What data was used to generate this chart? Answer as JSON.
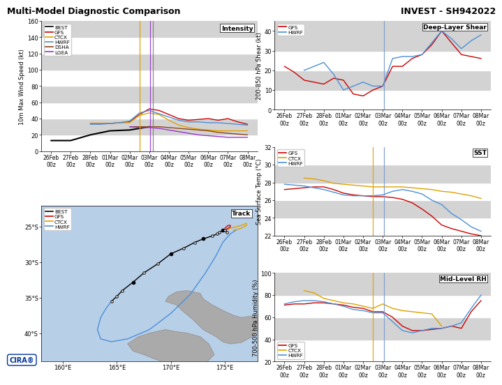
{
  "title_left": "Multi-Model Diagnostic Comparison",
  "title_right": "INVEST - SH942022",
  "x_labels": [
    "26Feb\n00z",
    "27Feb\n00z",
    "28Feb\n00z",
    "01Mar\n00z",
    "02Mar\n00z",
    "03Mar\n00z",
    "04Mar\n00z",
    "05Mar\n00z",
    "06Mar\n00z",
    "07Mar\n00z",
    "08Mar\n00z"
  ],
  "x_ticks": [
    0,
    1,
    2,
    3,
    4,
    5,
    6,
    7,
    8,
    9,
    10
  ],
  "vline_yellow_int": 4.5,
  "vline_purple_int": 5.05,
  "vline_gray_int": 5.2,
  "vline_blue_shear": 5.05,
  "vline_yellow_sst": 4.5,
  "vline_blue_sst": 5.05,
  "vline_yellow_rh": 4.5,
  "vline_blue_rh": 5.05,
  "intensity": {
    "ylabel": "10m Max Wind Speed (kt)",
    "ylim": [
      0,
      160
    ],
    "yticks": [
      0,
      20,
      40,
      60,
      80,
      100,
      120,
      140,
      160
    ],
    "label": "Intensity",
    "BEST": {
      "x": [
        0,
        1,
        2,
        3,
        4,
        4.5,
        5
      ],
      "y": [
        13,
        13,
        20,
        25,
        26,
        28,
        30
      ],
      "color": "#000000",
      "lw": 1.5
    },
    "GFS": {
      "x": [
        2,
        2.5,
        3,
        3.5,
        4,
        4.5,
        5,
        5.5,
        6,
        6.5,
        7,
        7.5,
        8,
        8.5,
        9,
        9.5,
        10
      ],
      "y": [
        34,
        34,
        34,
        35,
        36,
        45,
        52,
        50,
        45,
        40,
        38,
        39,
        40,
        38,
        40,
        36,
        33
      ],
      "color": "#cc0000",
      "lw": 1.0
    },
    "CTCX": {
      "x": [
        2,
        2.5,
        3,
        3.5,
        4,
        4.5,
        5,
        5.5,
        6,
        6.5,
        7,
        7.5,
        8,
        8.5,
        9,
        9.5,
        10
      ],
      "y": [
        34,
        34,
        34,
        35,
        35,
        44,
        47,
        45,
        38,
        32,
        29,
        27,
        26,
        25,
        25,
        25,
        25
      ],
      "color": "#e0a000",
      "lw": 1.0
    },
    "HWRF": {
      "x": [
        2,
        2.5,
        3,
        3.5,
        4,
        4.5,
        5,
        5.5,
        6,
        6.5,
        7,
        7.5,
        8,
        8.5,
        9,
        9.5,
        10
      ],
      "y": [
        33,
        33,
        34,
        35,
        37,
        47,
        50,
        46,
        42,
        38,
        36,
        36,
        35,
        35,
        34,
        33,
        32
      ],
      "color": "#4a90d9",
      "lw": 1.0
    },
    "DSHA": {
      "x": [
        4,
        4.5,
        5,
        5.5,
        6,
        6.5,
        7,
        7.5,
        8,
        8.5,
        9,
        9.5,
        10
      ],
      "y": [
        30,
        30,
        30,
        30,
        29,
        28,
        27,
        26,
        25,
        23,
        22,
        21,
        20
      ],
      "color": "#8B4513",
      "lw": 1.0
    },
    "LGEA": {
      "x": [
        4,
        4.5,
        5,
        5.5,
        6,
        6.5,
        7,
        7.5,
        8,
        8.5,
        9,
        9.5,
        10
      ],
      "y": [
        30,
        29,
        29,
        28,
        26,
        24,
        22,
        20,
        19,
        18,
        17,
        17,
        17
      ],
      "color": "#9932CC",
      "lw": 1.0
    }
  },
  "shear": {
    "ylabel": "200-850 hPa Shear (kt)",
    "ylim": [
      0,
      45
    ],
    "yticks": [
      0,
      10,
      20,
      30,
      40
    ],
    "label": "Deep-Layer Shear",
    "GFS": {
      "x": [
        0,
        0.5,
        1,
        1.5,
        2,
        2.5,
        3,
        3.5,
        4,
        4.5,
        5,
        5.5,
        6,
        6.5,
        7,
        7.5,
        8,
        8.5,
        9,
        9.5,
        10
      ],
      "y": [
        22,
        19,
        15,
        14,
        13,
        16,
        15,
        8,
        7,
        10,
        12,
        22,
        22,
        26,
        28,
        33,
        40,
        34,
        28,
        27,
        26
      ],
      "color": "#cc0000",
      "lw": 1.0
    },
    "HWRF": {
      "x": [
        1,
        1.5,
        2,
        2.5,
        3,
        3.5,
        4,
        4.5,
        5,
        5.5,
        6,
        6.5,
        7,
        7.5,
        8,
        8.5,
        9,
        9.5,
        10
      ],
      "y": [
        20,
        22,
        24,
        18,
        10,
        12,
        14,
        12,
        12,
        26,
        27,
        27,
        28,
        34,
        40,
        36,
        31,
        35,
        38
      ],
      "color": "#4a90d9",
      "lw": 1.0
    }
  },
  "sst": {
    "ylabel": "Sea Surface Temp (°C)",
    "ylim": [
      22,
      32
    ],
    "yticks": [
      22,
      24,
      26,
      28,
      30,
      32
    ],
    "label": "SST",
    "GFS": {
      "x": [
        0,
        0.5,
        1,
        1.5,
        2,
        2.5,
        3,
        3.5,
        4,
        4.5,
        5,
        5.5,
        6,
        6.5,
        7,
        7.5,
        8,
        8.5,
        9,
        9.5,
        10
      ],
      "y": [
        27.2,
        27.3,
        27.4,
        27.5,
        27.5,
        27.2,
        26.8,
        26.6,
        26.5,
        26.4,
        26.4,
        26.3,
        26.1,
        25.7,
        25.0,
        24.2,
        23.2,
        22.8,
        22.5,
        22.2,
        22.0
      ],
      "color": "#cc0000",
      "lw": 1.0
    },
    "CTCX": {
      "x": [
        1,
        1.5,
        2,
        2.5,
        3,
        3.5,
        4,
        4.5,
        5,
        5.5,
        6,
        6.5,
        7,
        7.5,
        8,
        8.5,
        9,
        9.5,
        10
      ],
      "y": [
        28.5,
        28.4,
        28.2,
        27.9,
        27.8,
        27.7,
        27.6,
        27.5,
        27.5,
        27.5,
        27.5,
        27.4,
        27.3,
        27.2,
        27.0,
        26.9,
        26.7,
        26.5,
        26.2
      ],
      "color": "#e0a000",
      "lw": 1.0
    },
    "HWRF": {
      "x": [
        0,
        0.5,
        1,
        1.5,
        2,
        2.5,
        3,
        3.5,
        4,
        4.5,
        5,
        5.5,
        6,
        6.5,
        7,
        7.5,
        8,
        8.5,
        9,
        9.5,
        10
      ],
      "y": [
        27.8,
        27.7,
        27.6,
        27.4,
        27.2,
        26.9,
        26.6,
        26.5,
        26.5,
        26.5,
        26.6,
        27.0,
        27.2,
        27.0,
        26.7,
        26.0,
        25.5,
        24.5,
        23.8,
        23.0,
        22.5
      ],
      "color": "#4a90d9",
      "lw": 1.0
    }
  },
  "rh": {
    "ylabel": "700-500 hPa Humidity (%)",
    "ylim": [
      20,
      100
    ],
    "yticks": [
      20,
      40,
      60,
      80,
      100
    ],
    "label": "Mid-Level RH",
    "GFS": {
      "x": [
        0,
        0.5,
        1,
        1.5,
        2,
        2.5,
        3,
        3.5,
        4,
        4.5,
        5,
        5.5,
        6,
        6.5,
        7,
        7.5,
        8,
        8.5,
        9,
        9.5,
        10
      ],
      "y": [
        71,
        72,
        72,
        73,
        73,
        72,
        71,
        69,
        68,
        65,
        65,
        60,
        52,
        48,
        48,
        49,
        50,
        52,
        50,
        65,
        75
      ],
      "color": "#cc0000",
      "lw": 1.0
    },
    "CTCX": {
      "x": [
        1,
        1.5,
        2,
        2.5,
        3,
        3.5,
        4,
        4.5,
        5,
        5.5,
        6,
        6.5,
        7,
        7.5,
        8
      ],
      "y": [
        84,
        82,
        77,
        75,
        73,
        72,
        70,
        68,
        72,
        68,
        66,
        65,
        64,
        63,
        52
      ],
      "color": "#e0a000",
      "lw": 1.0
    },
    "HWRF": {
      "x": [
        0,
        0.5,
        1,
        1.5,
        2,
        2.5,
        3,
        3.5,
        4,
        4.5,
        5,
        5.5,
        6,
        6.5,
        7,
        7.5,
        8,
        8.5,
        9,
        9.5,
        10
      ],
      "y": [
        72,
        74,
        75,
        75,
        74,
        72,
        70,
        67,
        66,
        64,
        64,
        56,
        48,
        46,
        48,
        50,
        50,
        52,
        55,
        68,
        80
      ],
      "color": "#4a90d9",
      "lw": 1.0
    }
  },
  "track": {
    "label": "Track",
    "lon_min": 158,
    "lon_max": 178,
    "lat_min": -44,
    "lat_max": -22,
    "lon_ticks": [
      160,
      165,
      170,
      175
    ],
    "lat_ticks": [
      -40,
      -35,
      -30,
      -25
    ],
    "BEST": {
      "lon": [
        164.5,
        165.0,
        165.5,
        166.5,
        167.5,
        168.8,
        170.0,
        171.2,
        172.2,
        173.0,
        173.8,
        174.3,
        174.5,
        174.8,
        175.0,
        175.2
      ],
      "lat": [
        -35.5,
        -34.8,
        -34.0,
        -32.8,
        -31.5,
        -30.2,
        -28.8,
        -28.0,
        -27.2,
        -26.7,
        -26.3,
        -26.0,
        -25.8,
        -25.5,
        -25.5,
        -25.8
      ],
      "color": "#000000",
      "filled": [
        false,
        false,
        false,
        true,
        false,
        false,
        true,
        false,
        false,
        true,
        false,
        false,
        false,
        true,
        false,
        false
      ]
    },
    "GFS": {
      "lon": [
        175.0,
        175.3,
        175.5,
        175.5,
        175.3,
        175.0
      ],
      "lat": [
        -25.5,
        -25.2,
        -25.0,
        -24.8,
        -24.8,
        -25.2
      ],
      "color": "#cc0000"
    },
    "CTCX": {
      "lon": [
        175.0,
        175.5,
        176.0,
        176.5,
        177.0,
        177.0,
        176.5,
        175.8
      ],
      "lat": [
        -25.5,
        -25.2,
        -25.0,
        -24.8,
        -24.5,
        -24.8,
        -25.2,
        -25.5
      ],
      "color": "#e0a000"
    },
    "HWRF": {
      "lon": [
        164.5,
        164.0,
        163.5,
        163.2,
        163.5,
        164.5,
        166.0,
        168.0,
        170.0,
        171.8,
        173.2,
        174.2,
        174.8,
        175.2,
        175.5,
        175.8,
        176.0
      ],
      "lat": [
        -35.5,
        -36.5,
        -37.8,
        -39.5,
        -40.8,
        -41.2,
        -40.8,
        -39.5,
        -37.2,
        -34.5,
        -31.5,
        -29.0,
        -27.2,
        -26.5,
        -26.0,
        -25.7,
        -25.5
      ],
      "color": "#4a90d9"
    }
  },
  "background_color": "#ffffff",
  "ocean_color": "#b8cfe8",
  "land_color": "#aaaaaa"
}
